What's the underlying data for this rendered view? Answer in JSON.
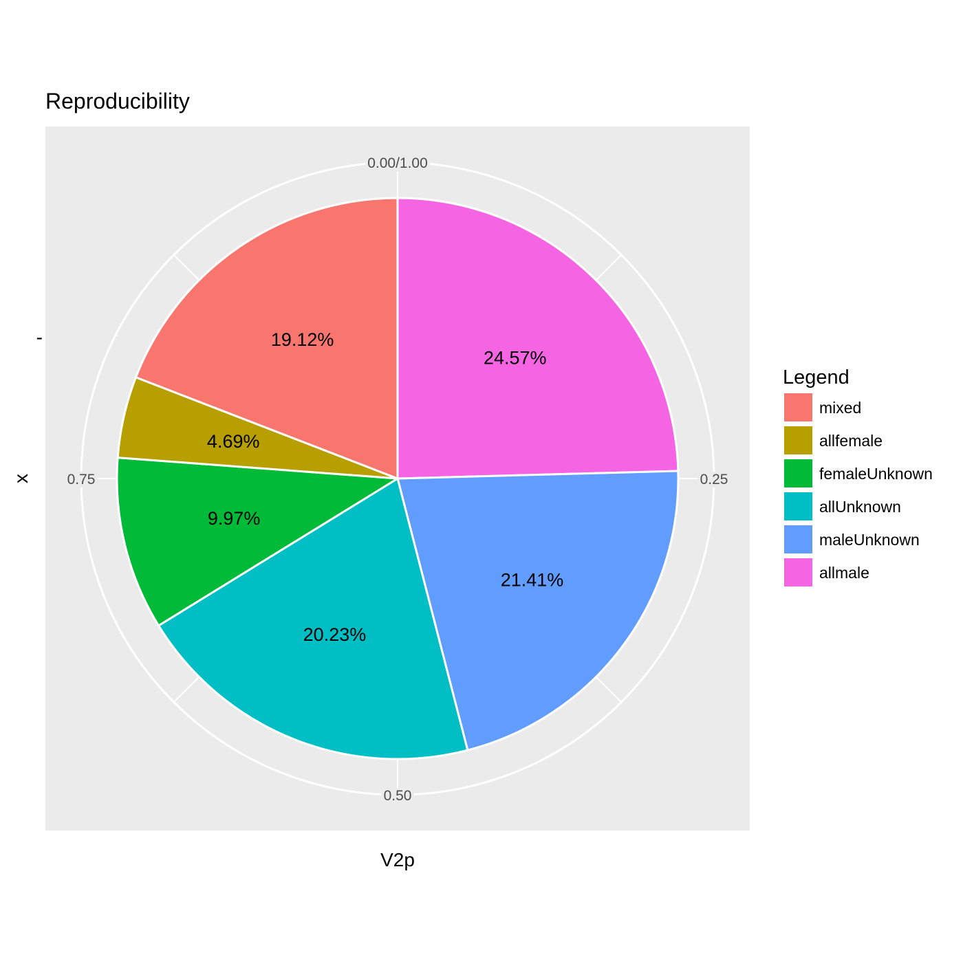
{
  "chart_data": {
    "type": "pie",
    "title": "Reproducibility",
    "xlabel": "V2p",
    "ylabel": "x",
    "y_tick_label": "-",
    "theta_ticks": [
      "0.00/1.00",
      "0.25",
      "0.50",
      "0.75"
    ],
    "theta_tick_values": [
      0,
      0.25,
      0.5,
      0.75
    ],
    "grid": true,
    "legend": {
      "title": "Legend",
      "position": "right",
      "entries": [
        "mixed",
        "allfemale",
        "femaleUnknown",
        "allUnknown",
        "maleUnknown",
        "allmale"
      ]
    },
    "slice_order": [
      "allmale",
      "maleUnknown",
      "allUnknown",
      "femaleUnknown",
      "allfemale",
      "mixed"
    ],
    "slices": [
      {
        "name": "mixed",
        "value": 19.12,
        "label": "19.12%",
        "color": "#F8766D"
      },
      {
        "name": "allfemale",
        "value": 4.69,
        "label": "4.69%",
        "color": "#B79F00"
      },
      {
        "name": "femaleUnknown",
        "value": 9.97,
        "label": "9.97%",
        "color": "#00BA38"
      },
      {
        "name": "allUnknown",
        "value": 20.23,
        "label": "20.23%",
        "color": "#00BFC4"
      },
      {
        "name": "maleUnknown",
        "value": 21.41,
        "label": "21.41%",
        "color": "#619CFF"
      },
      {
        "name": "allmale",
        "value": 24.57,
        "label": "24.57%",
        "color": "#F564E3"
      }
    ],
    "panel_background": "#EBEBEB",
    "grid_color": "#FFFFFF"
  }
}
